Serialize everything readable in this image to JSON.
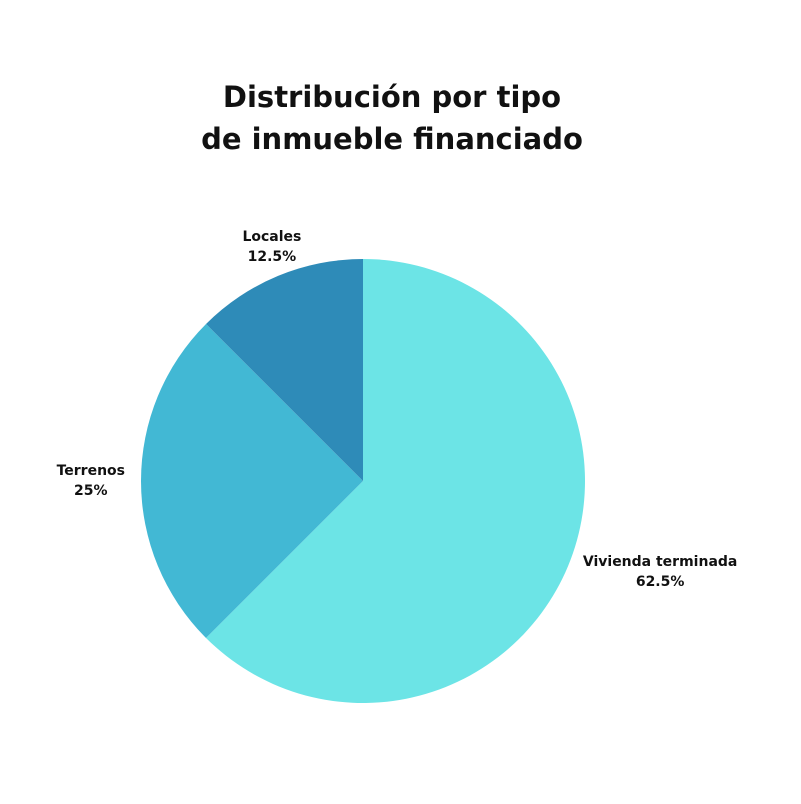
{
  "chart_data": {
    "type": "pie",
    "title": [
      "Distribución por tipo",
      "de inmueble financiado"
    ],
    "categories": [
      "Vivienda terminada",
      "Terrenos",
      "Locales"
    ],
    "values": [
      62.5,
      25,
      12.5
    ],
    "value_labels": [
      "62.5%",
      "25%",
      "12.5%"
    ],
    "colors": [
      "#6ce4e6",
      "#42b8d4",
      "#2e8bb8"
    ]
  }
}
